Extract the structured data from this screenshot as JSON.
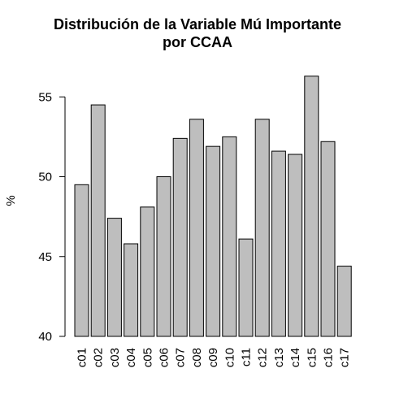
{
  "chart_data": {
    "type": "bar",
    "title_lines": [
      "Distribución de la Variable Mú Importante",
      "por CCAA"
    ],
    "xlabel": "",
    "ylabel": "%",
    "categories": [
      "c01",
      "c02",
      "c03",
      "c04",
      "c05",
      "c06",
      "c07",
      "c08",
      "c09",
      "c10",
      "c11",
      "c12",
      "c13",
      "c14",
      "c15",
      "c16",
      "c17"
    ],
    "values": [
      49.5,
      54.5,
      47.4,
      45.8,
      48.1,
      50.0,
      52.4,
      53.6,
      51.9,
      52.5,
      46.1,
      53.6,
      51.6,
      51.4,
      56.3,
      52.2,
      44.4
    ],
    "ylim": [
      40,
      57.3
    ],
    "yticks": [
      40,
      45,
      50,
      55
    ],
    "bar_color": "#bebebe",
    "bar_border_color": "#000000",
    "grid": false,
    "legend": "none"
  }
}
